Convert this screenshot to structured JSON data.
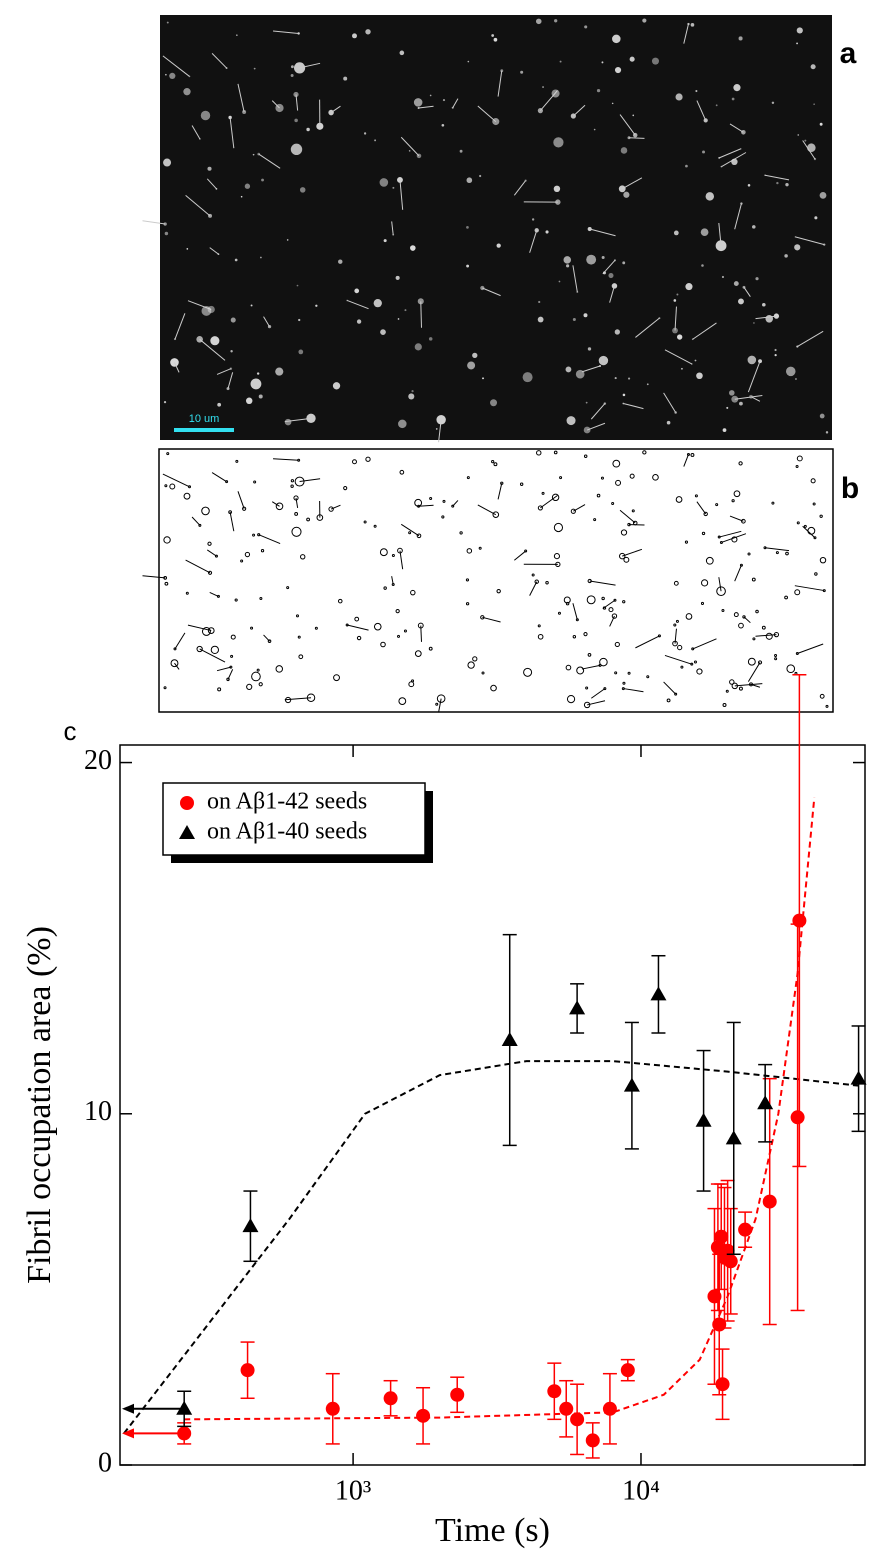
{
  "panels": {
    "a": "a",
    "b": "b",
    "c": "c"
  },
  "scale_bar": "10 um",
  "chart_data": {
    "type": "scatter",
    "xlabel": "Time (s)",
    "ylabel": "Fibril occupation area (%)",
    "xscale": "log",
    "xlim": [
      155,
      60000
    ],
    "ylim": [
      0,
      20.5
    ],
    "xticks": [
      {
        "value": 1000,
        "label": "10³"
      },
      {
        "value": 10000,
        "label": "10⁴"
      }
    ],
    "yticks": [
      0,
      10,
      20
    ],
    "legend": "upper left",
    "series": [
      {
        "name": "on Aβ1-42 seeds",
        "color": "#ff0000",
        "marker": "circle",
        "x": [
          259,
          430,
          850,
          1350,
          1750,
          2300,
          5000,
          5500,
          6000,
          6800,
          7800,
          9000,
          18000,
          18500,
          18700,
          19000,
          19200,
          19500,
          20000,
          20500,
          23000,
          28000,
          35000,
          35500
        ],
        "values": [
          0.9,
          2.7,
          1.6,
          1.9,
          1.4,
          2.0,
          2.1,
          1.6,
          1.3,
          0.7,
          1.6,
          2.7,
          4.8,
          6.2,
          4.0,
          6.5,
          2.3,
          5.9,
          6.1,
          5.8,
          6.7,
          7.5,
          9.9,
          15.5
        ],
        "errors": [
          0.3,
          0.8,
          1.0,
          0.5,
          0.8,
          0.5,
          0.8,
          0.8,
          1.0,
          0.5,
          1.0,
          0.3,
          2.5,
          1.8,
          2.0,
          1.5,
          1.0,
          2.0,
          2.0,
          1.5,
          0.5,
          3.5,
          5.5,
          7.0
        ]
      },
      {
        "name": "on Aβ1-40 seeds",
        "color": "#000000",
        "marker": "triangle",
        "x": [
          259,
          440,
          3500,
          6000,
          9300,
          11500,
          16500,
          21000,
          27000,
          57000
        ],
        "values": [
          1.6,
          6.8,
          12.1,
          13.0,
          10.8,
          13.4,
          9.8,
          9.3,
          10.3,
          11.0
        ],
        "errors": [
          0.5,
          1.0,
          3.0,
          0.7,
          1.8,
          1.1,
          2.0,
          3.3,
          1.1,
          1.5
        ]
      }
    ],
    "fits": [
      {
        "color": "#000000",
        "x": [
          160,
          300,
          600,
          1100,
          2000,
          4000,
          8000,
          20000,
          57000
        ],
        "values": [
          0.9,
          3.8,
          7.0,
          10.0,
          11.1,
          11.5,
          11.5,
          11.2,
          10.8
        ]
      },
      {
        "color": "#ff0000",
        "x": [
          259,
          2000,
          8000,
          12000,
          16000,
          20000,
          25000,
          30000,
          35000,
          40000
        ],
        "values": [
          1.3,
          1.35,
          1.5,
          2.0,
          3.0,
          4.8,
          7.0,
          10.0,
          14.0,
          19.0
        ]
      }
    ]
  }
}
